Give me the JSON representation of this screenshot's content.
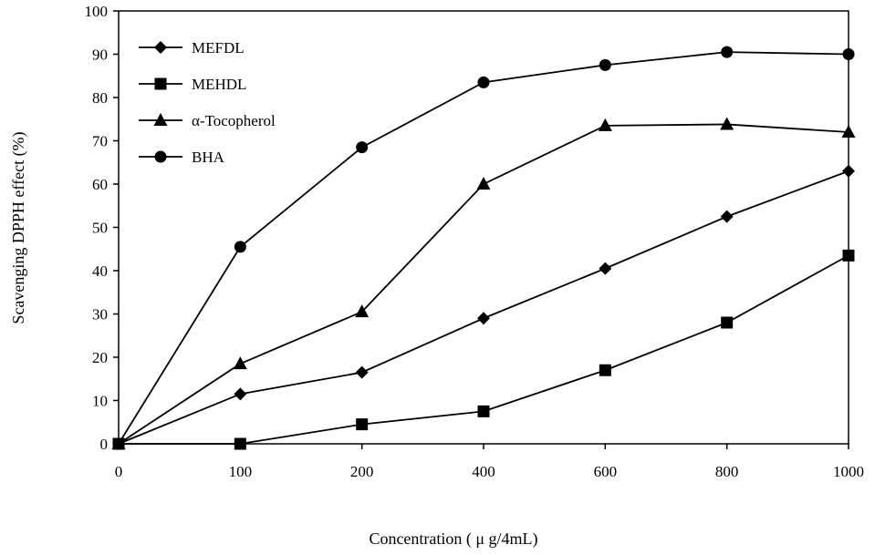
{
  "chart_data": {
    "type": "line",
    "title": "",
    "xlabel": "Concentration ( μ g/4mL)",
    "ylabel": "Scavenging DPPH effect (%)",
    "categories": [
      "0",
      "100",
      "200",
      "400",
      "600",
      "800",
      "1000"
    ],
    "ylim": [
      0,
      100
    ],
    "yticks": [
      "0",
      "10",
      "20",
      "30",
      "40",
      "50",
      "60",
      "70",
      "80",
      "90",
      "100"
    ],
    "legend_position": "top-left",
    "grid": false,
    "series": [
      {
        "name": "MEFDL",
        "marker": "diamond",
        "values": [
          0,
          11.5,
          16.5,
          29,
          40.5,
          52.5,
          63
        ]
      },
      {
        "name": "MEHDL",
        "marker": "square",
        "values": [
          0,
          0,
          4.5,
          7.5,
          17,
          28,
          43.5
        ]
      },
      {
        "name": "α-Tocopherol",
        "marker": "triangle",
        "values": [
          0,
          18.5,
          30.5,
          60,
          73.5,
          73.8,
          72
        ]
      },
      {
        "name": "BHA",
        "marker": "circle",
        "values": [
          0,
          45.5,
          68.5,
          83.5,
          87.5,
          90.5,
          90
        ]
      }
    ]
  }
}
